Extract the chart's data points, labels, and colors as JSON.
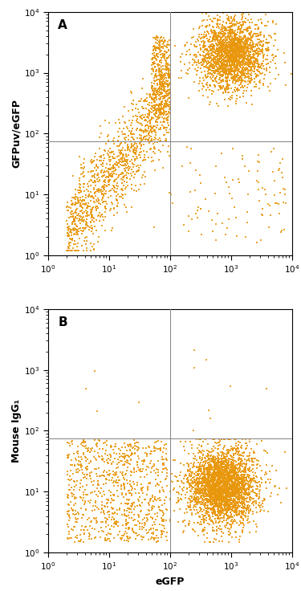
{
  "dot_color": "#E8960A",
  "dot_size": 2.5,
  "dot_alpha": 0.85,
  "background_color": "#ffffff",
  "border_color": "#000000",
  "gate_line_color": "#888888",
  "xlim": [
    1,
    10000
  ],
  "ylim": [
    1,
    10000
  ],
  "xlabel": "eGFP",
  "ylabel_A": "GFPuv/eGFP",
  "ylabel_B": "Mouse IgG₁",
  "label_A": "A",
  "label_B": "B",
  "vline_x": 100,
  "hline_y_A": 75,
  "hline_y_B": 75,
  "tick_label_size": 7.5,
  "axis_label_size": 9,
  "panel_label_size": 11,
  "seed_A": 42,
  "seed_B": 99
}
